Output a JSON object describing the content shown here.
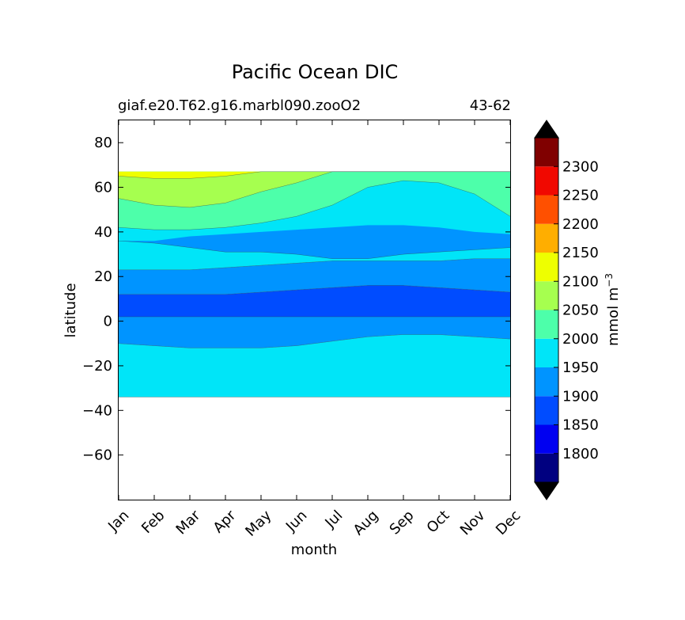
{
  "chart_data": {
    "type": "contour",
    "title": "Pacific Ocean DIC",
    "subtitle_left": "giaf.e20.T62.g16.marbl090.zooO2",
    "subtitle_right": "43-62",
    "xlabel": "month",
    "ylabel": "latitude",
    "x_ticks": [
      "Jan",
      "Feb",
      "Mar",
      "Apr",
      "May",
      "Jun",
      "Jul",
      "Aug",
      "Sep",
      "Oct",
      "Nov",
      "Dec"
    ],
    "ylim": [
      -80,
      90
    ],
    "y_ticks": [
      80,
      60,
      40,
      20,
      0,
      -20,
      -40,
      -60
    ],
    "y_tick_labels": [
      "80",
      "60",
      "40",
      "20",
      "0",
      "−20",
      "−40",
      "−60"
    ],
    "data_extent": {
      "lat_min": -34,
      "lat_max": 67
    },
    "colorbar": {
      "label": "mmol m",
      "label_superscript": "−3",
      "levels": [
        1750,
        1800,
        1850,
        1900,
        1950,
        2000,
        2050,
        2100,
        2150,
        2200,
        2250,
        2300,
        2350
      ],
      "colors": [
        "#000080",
        "#0000f1",
        "#004cff",
        "#0094ff",
        "#00e5f8",
        "#4dffaa",
        "#a6ff4f",
        "#eeff00",
        "#ffae00",
        "#ff5000",
        "#f10800",
        "#800000"
      ],
      "extend_low_color": "#000000",
      "extend_high_color": "#000000",
      "tick_values": [
        1800,
        1850,
        1900,
        1950,
        2000,
        2050,
        2100,
        2150,
        2200,
        2250,
        2300
      ],
      "tick_labels": [
        "1800",
        "1850",
        "1900",
        "1950",
        "2000",
        "2050",
        "2100",
        "2150",
        "2200",
        "2250",
        "2300"
      ]
    },
    "regions": [
      {
        "name": "southern-1950-2000",
        "level": 1950,
        "lat_lo": [
          -34,
          -34,
          -34,
          -34,
          -34,
          -34,
          -34,
          -34,
          -34,
          -34,
          -34,
          -34
        ],
        "lat_hi": [
          -10,
          -11,
          -12,
          -12,
          -12,
          -11,
          -9,
          -7,
          -6,
          -6,
          -7,
          -8
        ]
      },
      {
        "name": "band-1900-1950-south",
        "level": 1900,
        "lat_lo": [
          -10,
          -11,
          -12,
          -12,
          -12,
          -11,
          -9,
          -7,
          -6,
          -6,
          -7,
          -8
        ],
        "lat_hi": [
          2,
          2,
          2,
          2,
          2,
          2,
          2,
          2,
          2,
          2,
          2,
          2
        ]
      },
      {
        "name": "band-1850-1900-equator",
        "level": 1850,
        "lat_lo": [
          2,
          2,
          2,
          2,
          2,
          2,
          2,
          2,
          2,
          2,
          2,
          2
        ],
        "lat_hi": [
          12,
          12,
          12,
          12,
          13,
          14,
          15,
          16,
          16,
          15,
          14,
          13
        ]
      },
      {
        "name": "band-1900-1950-north",
        "level": 1900,
        "lat_lo": [
          12,
          12,
          12,
          12,
          13,
          14,
          15,
          16,
          16,
          15,
          14,
          13
        ],
        "lat_hi": [
          23,
          23,
          23,
          24,
          25,
          26,
          27,
          27,
          27,
          27,
          28,
          28
        ]
      },
      {
        "name": "northern-1950-2000",
        "level": 1950,
        "lat_lo": [
          23,
          23,
          23,
          24,
          25,
          26,
          27,
          27,
          27,
          27,
          28,
          28
        ],
        "lat_hi": [
          67,
          67,
          67,
          67,
          67,
          67,
          67,
          67,
          67,
          67,
          67,
          67
        ]
      },
      {
        "name": "tongue-1900-1950",
        "level": 1900,
        "lat_lo": [
          36,
          35,
          33,
          31,
          31,
          30,
          28,
          28,
          30,
          31,
          32,
          33
        ],
        "lat_hi": [
          36,
          36,
          38,
          39,
          40,
          41,
          42,
          43,
          43,
          42,
          40,
          39
        ]
      },
      {
        "name": "northwest-2000-2050",
        "level": 2000,
        "lat_lo": [
          42,
          41,
          41,
          42,
          44,
          47,
          52,
          60,
          63,
          62,
          57,
          47
        ],
        "lat_hi": [
          67,
          67,
          67,
          67,
          67,
          67,
          67,
          67,
          67,
          67,
          67,
          67
        ]
      },
      {
        "name": "northwest-2050-2100",
        "level": 2050,
        "lat_lo": [
          55,
          52,
          51,
          53,
          58,
          62,
          67,
          67,
          67,
          67,
          67,
          67
        ],
        "lat_hi": [
          67,
          67,
          67,
          67,
          67,
          67,
          67,
          67,
          67,
          67,
          67,
          67
        ]
      },
      {
        "name": "northwest-2100-2150",
        "level": 2100,
        "lat_lo": [
          65,
          64,
          64,
          65,
          67,
          67,
          67,
          67,
          67,
          67,
          67,
          67
        ],
        "lat_hi": [
          67,
          67,
          67,
          67,
          67,
          67,
          67,
          67,
          67,
          67,
          67,
          67
        ]
      }
    ]
  }
}
